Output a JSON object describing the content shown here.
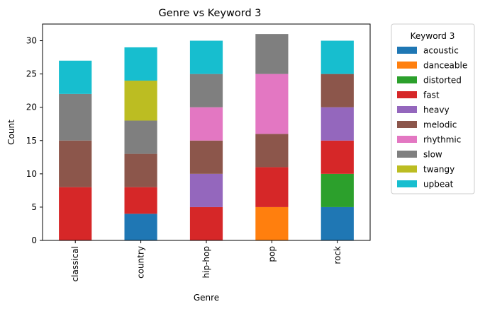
{
  "chart_data": {
    "type": "bar",
    "stacked": true,
    "title": "Genre vs Keyword 3",
    "xlabel": "Genre",
    "ylabel": "Count",
    "categories": [
      "classical",
      "country",
      "hip-hop",
      "pop",
      "rock"
    ],
    "ylim": [
      0,
      32.5
    ],
    "yticks": [
      0,
      5,
      10,
      15,
      20,
      25,
      30
    ],
    "grid": false,
    "legend": {
      "title": "Keyword 3",
      "placement": "outside-right"
    },
    "series": [
      {
        "name": "acoustic",
        "color": "#1f77b4",
        "values": [
          0,
          4,
          0,
          0,
          5
        ]
      },
      {
        "name": "danceable",
        "color": "#ff7f0e",
        "values": [
          0,
          0,
          0,
          5,
          0
        ]
      },
      {
        "name": "distorted",
        "color": "#2ca02c",
        "values": [
          0,
          0,
          0,
          0,
          5
        ]
      },
      {
        "name": "fast",
        "color": "#d62728",
        "values": [
          8,
          4,
          5,
          6,
          5
        ]
      },
      {
        "name": "heavy",
        "color": "#9467bd",
        "values": [
          0,
          0,
          5,
          0,
          5
        ]
      },
      {
        "name": "melodic",
        "color": "#8c564b",
        "values": [
          7,
          5,
          5,
          5,
          5
        ]
      },
      {
        "name": "rhythmic",
        "color": "#e377c2",
        "values": [
          0,
          0,
          5,
          9,
          0
        ]
      },
      {
        "name": "slow",
        "color": "#7f7f7f",
        "values": [
          7,
          5,
          5,
          6,
          0
        ]
      },
      {
        "name": "twangy",
        "color": "#bcbd22",
        "values": [
          0,
          6,
          0,
          0,
          0
        ]
      },
      {
        "name": "upbeat",
        "color": "#17becf",
        "values": [
          5,
          5,
          5,
          0,
          5
        ]
      }
    ]
  }
}
